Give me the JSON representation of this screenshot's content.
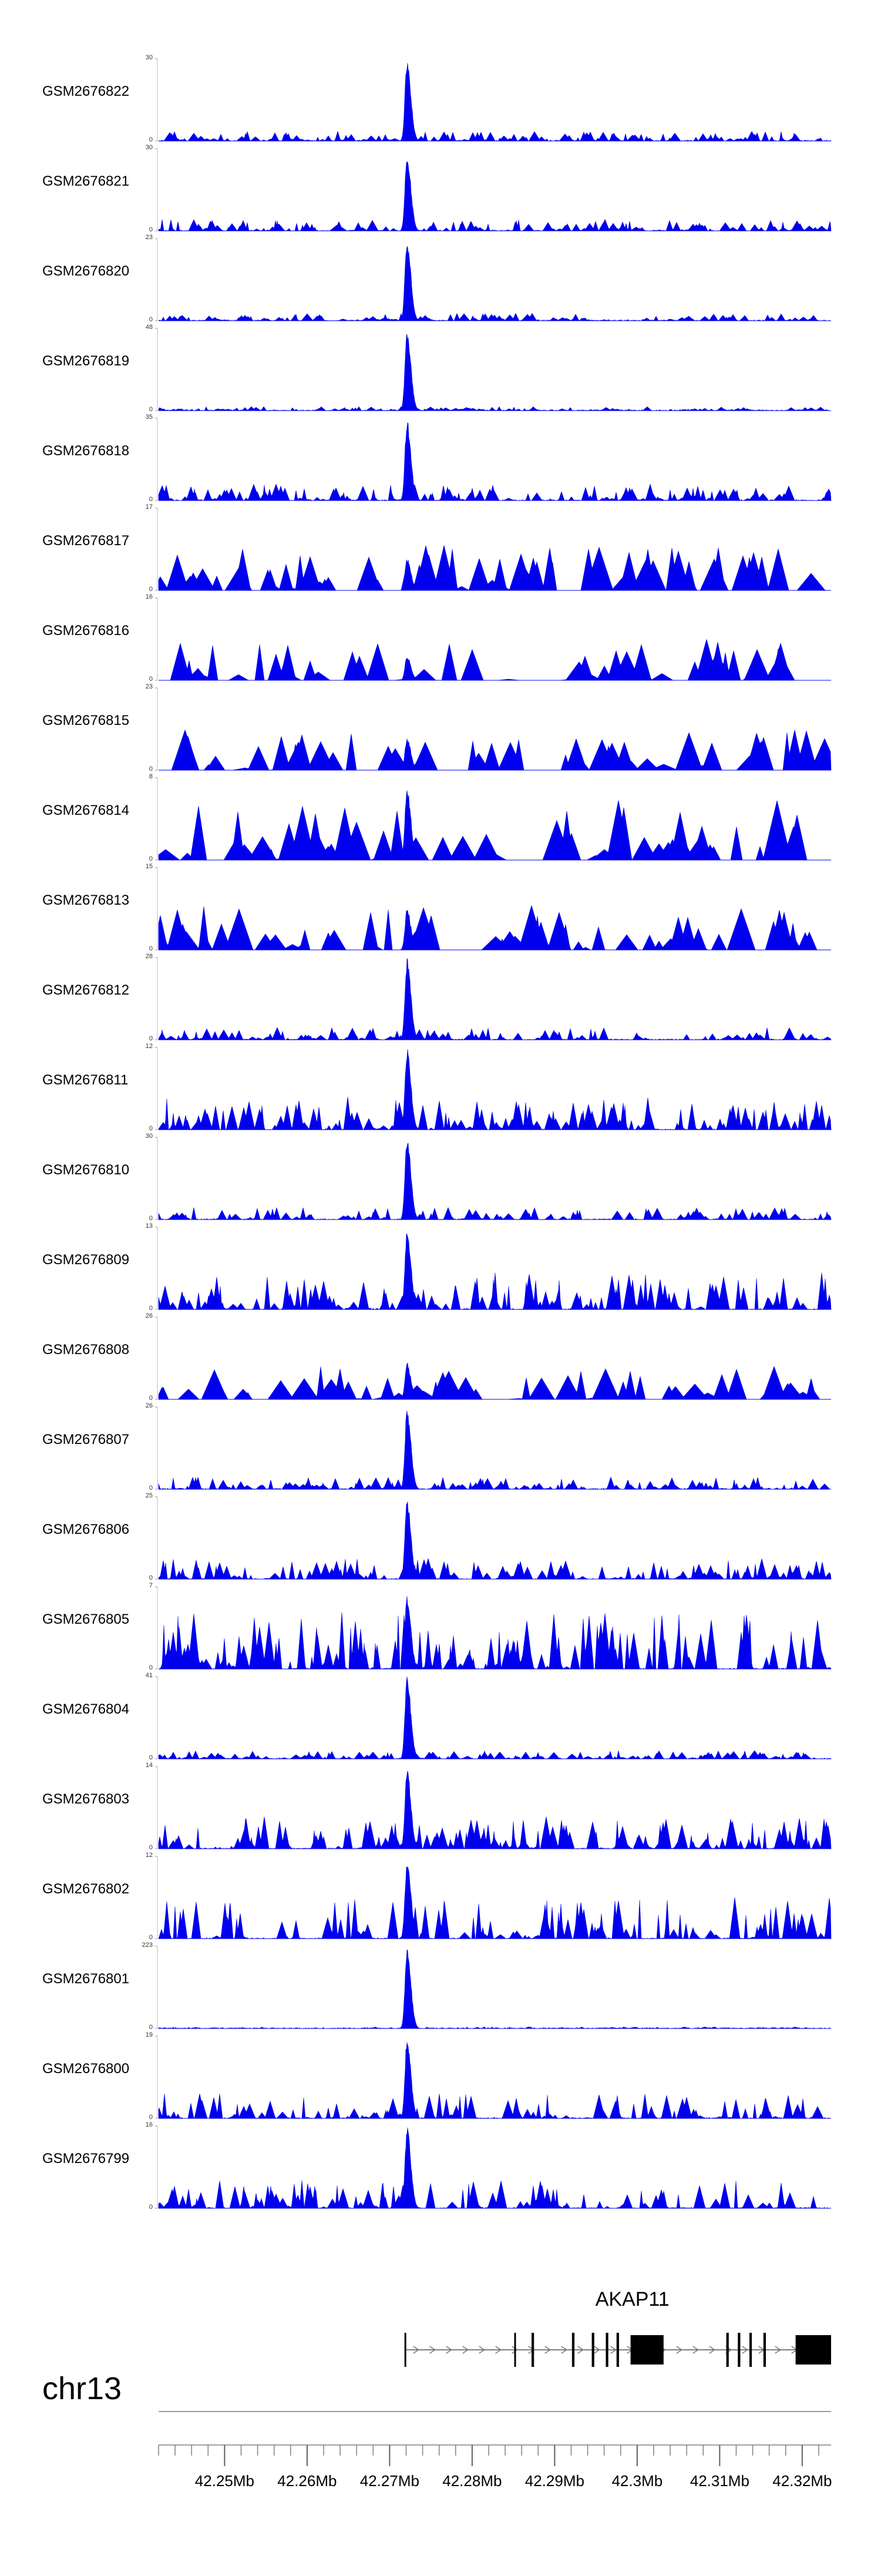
{
  "chart_data": {
    "type": "area",
    "title": "",
    "region": {
      "chromosome": "chr13",
      "start_mb": 42.242,
      "end_mb": 42.3235
    },
    "peak_position_mb": 42.2718,
    "x_axis": {
      "ticks_mb": [
        42.25,
        42.26,
        42.27,
        42.28,
        42.29,
        42.3,
        42.31,
        42.32
      ],
      "tick_labels": [
        "42.25Mb",
        "42.26Mb",
        "42.27Mb",
        "42.28Mb",
        "42.29Mb",
        "42.3Mb",
        "42.31Mb",
        "42.32Mb"
      ],
      "minor_tick_step_mb": 0.002
    },
    "series": [
      {
        "name": "GSM2676822",
        "ymax": 30,
        "ymin": 0,
        "peak": 1.0,
        "background": 0.12,
        "sparse": false
      },
      {
        "name": "GSM2676821",
        "ymax": 30,
        "ymin": 0,
        "peak": 0.95,
        "background": 0.14,
        "sparse": false
      },
      {
        "name": "GSM2676820",
        "ymax": 23,
        "ymin": 0,
        "peak": 1.0,
        "background": 0.09,
        "sparse": false
      },
      {
        "name": "GSM2676819",
        "ymax": 48,
        "ymin": 0,
        "peak": 0.98,
        "background": 0.05,
        "sparse": false
      },
      {
        "name": "GSM2676818",
        "ymax": 35,
        "ymin": 0,
        "peak": 1.0,
        "background": 0.2,
        "sparse": false
      },
      {
        "name": "GSM2676817",
        "ymax": 17,
        "ymin": 0,
        "peak": 0.4,
        "background": 0.55,
        "sparse": true
      },
      {
        "name": "GSM2676816",
        "ymax": 16,
        "ymin": 0,
        "peak": 0.3,
        "background": 0.5,
        "sparse": true
      },
      {
        "name": "GSM2676815",
        "ymax": 23,
        "ymin": 0,
        "peak": 0.4,
        "background": 0.5,
        "sparse": true
      },
      {
        "name": "GSM2676814",
        "ymax": 8,
        "ymin": 0,
        "peak": 0.9,
        "background": 0.75,
        "sparse": true
      },
      {
        "name": "GSM2676813",
        "ymax": 15,
        "ymin": 0,
        "peak": 0.5,
        "background": 0.55,
        "sparse": true
      },
      {
        "name": "GSM2676812",
        "ymax": 28,
        "ymin": 0,
        "peak": 1.0,
        "background": 0.15,
        "sparse": false
      },
      {
        "name": "GSM2676811",
        "ymax": 12,
        "ymin": 0,
        "peak": 1.0,
        "background": 0.4,
        "sparse": false
      },
      {
        "name": "GSM2676810",
        "ymax": 30,
        "ymin": 0,
        "peak": 1.0,
        "background": 0.15,
        "sparse": false
      },
      {
        "name": "GSM2676809",
        "ymax": 13,
        "ymin": 0,
        "peak": 1.0,
        "background": 0.45,
        "sparse": false
      },
      {
        "name": "GSM2676808",
        "ymax": 26,
        "ymin": 0,
        "peak": 0.45,
        "background": 0.4,
        "sparse": true
      },
      {
        "name": "GSM2676807",
        "ymax": 26,
        "ymin": 0,
        "peak": 1.0,
        "background": 0.15,
        "sparse": false
      },
      {
        "name": "GSM2676806",
        "ymax": 25,
        "ymin": 0,
        "peak": 1.0,
        "background": 0.25,
        "sparse": false
      },
      {
        "name": "GSM2676805",
        "ymax": 7,
        "ymin": 0,
        "peak": 0.9,
        "background": 0.7,
        "sparse": false
      },
      {
        "name": "GSM2676804",
        "ymax": 41,
        "ymin": 0,
        "peak": 1.0,
        "background": 0.1,
        "sparse": false
      },
      {
        "name": "GSM2676803",
        "ymax": 14,
        "ymin": 0,
        "peak": 1.0,
        "background": 0.4,
        "sparse": false
      },
      {
        "name": "GSM2676802",
        "ymax": 12,
        "ymin": 0,
        "peak": 1.0,
        "background": 0.5,
        "sparse": false
      },
      {
        "name": "GSM2676801",
        "ymax": 223,
        "ymin": 0,
        "peak": 1.0,
        "background": 0.02,
        "sparse": false
      },
      {
        "name": "GSM2676800",
        "ymax": 19,
        "ymin": 0,
        "peak": 1.0,
        "background": 0.3,
        "sparse": false
      },
      {
        "name": "GSM2676799",
        "ymax": 16,
        "ymin": 0,
        "peak": 1.0,
        "background": 0.35,
        "sparse": false
      }
    ],
    "gene": {
      "name": "AKAP11",
      "start_mb": 42.2718,
      "end_mb": 42.3235,
      "strand": "+",
      "exons_mb": [
        [
          42.2718,
          42.272
        ],
        [
          42.2851,
          42.2853
        ],
        [
          42.2872,
          42.2875
        ],
        [
          42.2921,
          42.2924
        ],
        [
          42.2945,
          42.2948
        ],
        [
          42.2962,
          42.2965
        ],
        [
          42.2975,
          42.2978
        ],
        [
          42.2992,
          42.3032
        ],
        [
          42.3108,
          42.3111
        ],
        [
          42.3122,
          42.3125
        ],
        [
          42.3136,
          42.3139
        ],
        [
          42.3153,
          42.3156
        ],
        [
          42.3192,
          42.3235
        ]
      ]
    }
  },
  "colors": {
    "signal": "#0000ee",
    "axis": "#808080",
    "text": "#000000",
    "gene": "#000000"
  }
}
